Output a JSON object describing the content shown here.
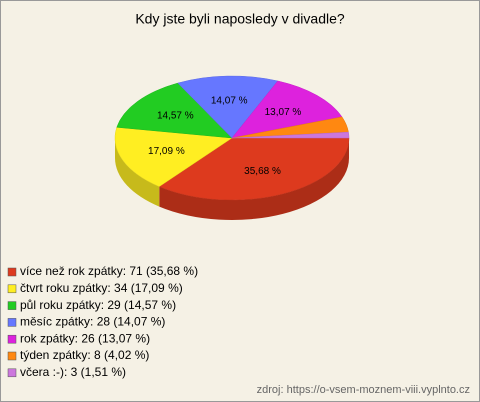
{
  "chart_data": {
    "type": "pie3d",
    "title": "Kdy jste byli naposledy v divadle?",
    "categories": [
      "více než rok zpátky: 71 (35,68 %)",
      "čtvrt roku zpátky: 34 (17,09 %)",
      "půl roku zpátky: 29 (14,57 %)",
      "měsíc zpátky: 28 (14,07 %)",
      "rok zpátky: 26 (13,07 %)",
      "týden zpátky: 8 (4,02 %)",
      "včera :-): 3 (1,51 %)"
    ],
    "values": [
      35.68,
      17.09,
      14.57,
      14.07,
      13.07,
      4.02,
      1.51
    ],
    "value_labels": [
      "35,68 %",
      "17,09 %",
      "14,57 %",
      "14,07 %",
      "13,07 %",
      null,
      null
    ],
    "colors": [
      "#dd3a1e",
      "#ffee22",
      "#22cc22",
      "#6677ff",
      "#dd22dd",
      "#ff8811",
      "#cc77dd"
    ],
    "source": "zdroj: https://o-vsem-moznem-viii.vyplnto.cz"
  }
}
